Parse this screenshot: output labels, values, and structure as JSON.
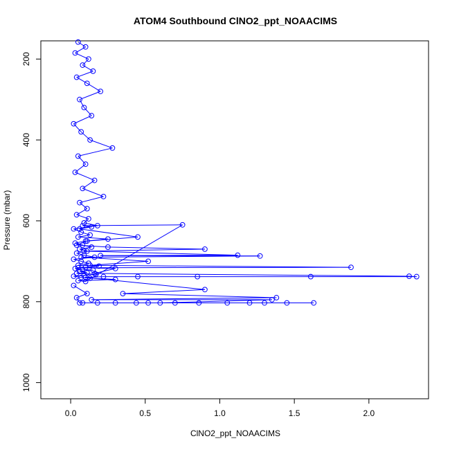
{
  "chart_data": {
    "type": "scatter",
    "title": "ATOM4 Southbound ClNO2_ppt_NOAACIMS",
    "xlabel": "ClNO2_ppt_NOAACIMS",
    "ylabel": "Pressure (mbar)",
    "xlim": [
      -0.2,
      2.4
    ],
    "ylim": [
      1040,
      155
    ],
    "y_reversed": true,
    "grid": false,
    "point_color": "#0000ff",
    "line_color": "#0000ff",
    "x_ticks": [
      {
        "value": 0.0,
        "label": "0.0"
      },
      {
        "value": 0.5,
        "label": "0.5"
      },
      {
        "value": 1.0,
        "label": "1.0"
      },
      {
        "value": 1.5,
        "label": "1.5"
      },
      {
        "value": 2.0,
        "label": "2.0"
      }
    ],
    "y_ticks": [
      {
        "value": 200,
        "label": "200"
      },
      {
        "value": 400,
        "label": "400"
      },
      {
        "value": 600,
        "label": "600"
      },
      {
        "value": 800,
        "label": "800"
      },
      {
        "value": 1000,
        "label": "1000"
      }
    ],
    "series": [
      {
        "x": [
          0.05,
          0.1,
          0.03,
          0.12,
          0.08,
          0.15,
          0.04,
          0.11,
          0.2,
          0.06,
          0.09,
          0.14,
          0.02,
          0.07,
          0.13,
          0.28,
          0.05,
          0.1,
          0.03,
          0.16,
          0.08,
          0.22,
          0.06,
          0.11,
          0.04,
          0.12,
          0.09,
          0.18,
          0.02,
          0.07,
          0.13,
          0.05,
          0.25,
          0.1,
          0.03,
          0.08,
          0.14,
          0.06,
          0.11,
          0.04,
          0.09,
          0.16,
          0.02,
          0.07,
          0.12,
          0.05,
          0.19,
          0.1,
          0.03,
          0.08,
          0.15,
          0.06,
          0.11,
          0.04,
          0.17,
          0.09,
          0.02,
          0.07,
          0.13,
          0.3,
          0.05,
          0.1,
          0.75,
          0.08,
          0.14,
          0.06,
          0.45,
          0.11,
          0.04,
          0.25,
          0.9,
          0.09,
          1.12,
          0.2,
          1.27,
          0.07,
          0.52,
          0.13,
          1.88,
          0.05,
          0.3,
          0.16,
          2.27,
          2.32,
          1.61,
          0.85,
          0.45,
          0.22,
          0.1,
          0.9,
          0.35,
          1.38,
          0.14,
          1.35,
          0.6,
          0.08,
          1.63,
          1.45,
          1.3,
          1.2,
          1.05,
          0.86,
          0.7,
          0.52,
          0.44,
          0.3,
          0.18,
          0.06,
          0.04,
          0.11,
          0.02
        ],
        "y": [
          158,
          170,
          185,
          200,
          215,
          230,
          245,
          260,
          280,
          300,
          320,
          340,
          360,
          380,
          400,
          420,
          440,
          460,
          480,
          500,
          520,
          540,
          555,
          570,
          585,
          595,
          605,
          612,
          620,
          628,
          635,
          640,
          645,
          650,
          655,
          660,
          665,
          670,
          675,
          680,
          685,
          690,
          695,
          700,
          705,
          710,
          712,
          715,
          718,
          720,
          722,
          725,
          728,
          730,
          732,
          735,
          737,
          740,
          742,
          745,
          748,
          750,
          610,
          612,
          615,
          620,
          640,
          650,
          660,
          665,
          670,
          675,
          685,
          686,
          687,
          690,
          700,
          710,
          715,
          716,
          718,
          730,
          737,
          738,
          738,
          738,
          738,
          738,
          740,
          770,
          780,
          790,
          795,
          795,
          803,
          803,
          803,
          803,
          803,
          803,
          803,
          803,
          803,
          803,
          803,
          803,
          803,
          803,
          790,
          780,
          760
        ]
      }
    ]
  }
}
